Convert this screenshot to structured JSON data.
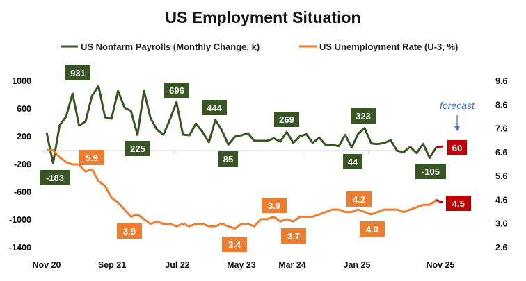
{
  "chart_data": {
    "type": "line",
    "title": "US Employment Situation",
    "x_tick_labels": [
      "Nov 20",
      "Sep 21",
      "Jul 22",
      "May 23",
      "Mar 24",
      "Jan 25",
      "Nov 25"
    ],
    "x_start": "Nov 2020",
    "x_end": "Nov 2025",
    "forecast_month": "Dec 2025",
    "forecast_text": "forecast",
    "left_axis": {
      "ylim": [
        -1400,
        1000
      ],
      "ticks": [
        "1000",
        "600",
        "200",
        "-200",
        "-600",
        "-1000",
        "-1400"
      ]
    },
    "right_axis": {
      "ylim": [
        2.6,
        9.6
      ],
      "ticks": [
        "9.6",
        "8.6",
        "7.6",
        "6.6",
        "5.6",
        "4.6",
        "3.6",
        "2.6"
      ]
    },
    "grid": false,
    "legend_position": "top",
    "series": [
      {
        "name": "US Nonfarm Payrolls (Monthly Change, k)",
        "axis": "left",
        "color": "#375623",
        "values": [
          260,
          -183,
          363,
          490,
          820,
          360,
          420,
          790,
          931,
          480,
          460,
          860,
          620,
          570,
          225,
          860,
          470,
          300,
          230,
          450,
          696,
          230,
          220,
          390,
          270,
          120,
          444,
          290,
          85,
          200,
          220,
          250,
          140,
          140,
          140,
          177,
          130,
          269,
          110,
          203,
          237,
          110,
          187,
          77,
          83,
          63,
          227,
          44,
          243,
          323,
          103,
          93,
          110,
          147,
          -3,
          -23,
          53,
          -37,
          97,
          -105,
          43
        ],
        "forecast": 60,
        "data_labels": [
          {
            "index": 1,
            "text": "-183"
          },
          {
            "index": 8,
            "text": "931"
          },
          {
            "index": 14,
            "text": "225"
          },
          {
            "index": 20,
            "text": "696"
          },
          {
            "index": 26,
            "text": "444"
          },
          {
            "index": 28,
            "text": "85"
          },
          {
            "index": 37,
            "text": "269"
          },
          {
            "index": 47,
            "text": "44"
          },
          {
            "index": 49,
            "text": "323"
          },
          {
            "index": 59,
            "text": "-105"
          }
        ],
        "forecast_label": "60"
      },
      {
        "name": "US Unemployment Rate (U-3, %)",
        "axis": "right",
        "color": "#ED7D31",
        "values": [
          6.7,
          6.7,
          6.4,
          6.2,
          6.1,
          6.1,
          5.8,
          5.9,
          5.4,
          5.2,
          4.7,
          4.5,
          4.2,
          3.9,
          4.0,
          3.8,
          3.6,
          3.7,
          3.6,
          3.6,
          3.5,
          3.6,
          3.5,
          3.6,
          3.6,
          3.5,
          3.5,
          3.6,
          3.5,
          3.4,
          3.6,
          3.6,
          3.5,
          3.8,
          3.8,
          3.9,
          3.7,
          3.8,
          3.7,
          3.9,
          3.9,
          3.9,
          4.0,
          4.1,
          4.2,
          4.2,
          4.1,
          4.1,
          4.2,
          4.1,
          4.0,
          4.1,
          4.2,
          4.2,
          4.2,
          4.1,
          4.2,
          4.3,
          4.4,
          4.4,
          4.6
        ],
        "forecast": 4.5,
        "data_labels": [
          {
            "index": 7,
            "text": "5.9"
          },
          {
            "index": 13,
            "text": "3.9"
          },
          {
            "index": 29,
            "text": "3.4"
          },
          {
            "index": 35,
            "text": "3.9"
          },
          {
            "index": 38,
            "text": "3.7"
          },
          {
            "index": 44,
            "text": "4.2"
          },
          {
            "index": 50,
            "text": "4.0"
          }
        ],
        "forecast_label": "4.5"
      }
    ],
    "forecast_color": "#C00000"
  }
}
